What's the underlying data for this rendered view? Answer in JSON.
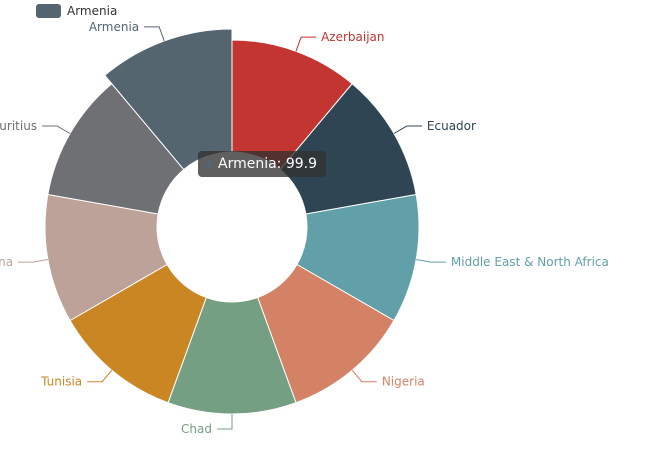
{
  "legend": {
    "label": "Armenia",
    "color": "#546570"
  },
  "tooltip": {
    "label": "Armenia",
    "value": "99.9",
    "text": "Armenia: 99.9"
  },
  "chart_data": {
    "type": "pie",
    "variant": "donut",
    "title": "",
    "series": [
      {
        "name": "Azerbaijan",
        "value": 99.9,
        "color": "#c23531"
      },
      {
        "name": "Ecuador",
        "value": 99.9,
        "color": "#2f4554"
      },
      {
        "name": "Middle East & North Africa",
        "value": 99.9,
        "color": "#61a0a8"
      },
      {
        "name": "Nigeria",
        "value": 99.9,
        "color": "#d48265"
      },
      {
        "name": "Chad",
        "value": 99.9,
        "color": "#749f83"
      },
      {
        "name": "Tunisia",
        "value": 99.9,
        "color": "#ca8622"
      },
      {
        "name": "Ghana",
        "value": 99.9,
        "color": "#bda29a"
      },
      {
        "name": "Mauritius",
        "value": 99.9,
        "color": "#6e7074"
      },
      {
        "name": "Armenia",
        "value": 99.9,
        "color": "#546570",
        "highlighted": true
      }
    ]
  }
}
